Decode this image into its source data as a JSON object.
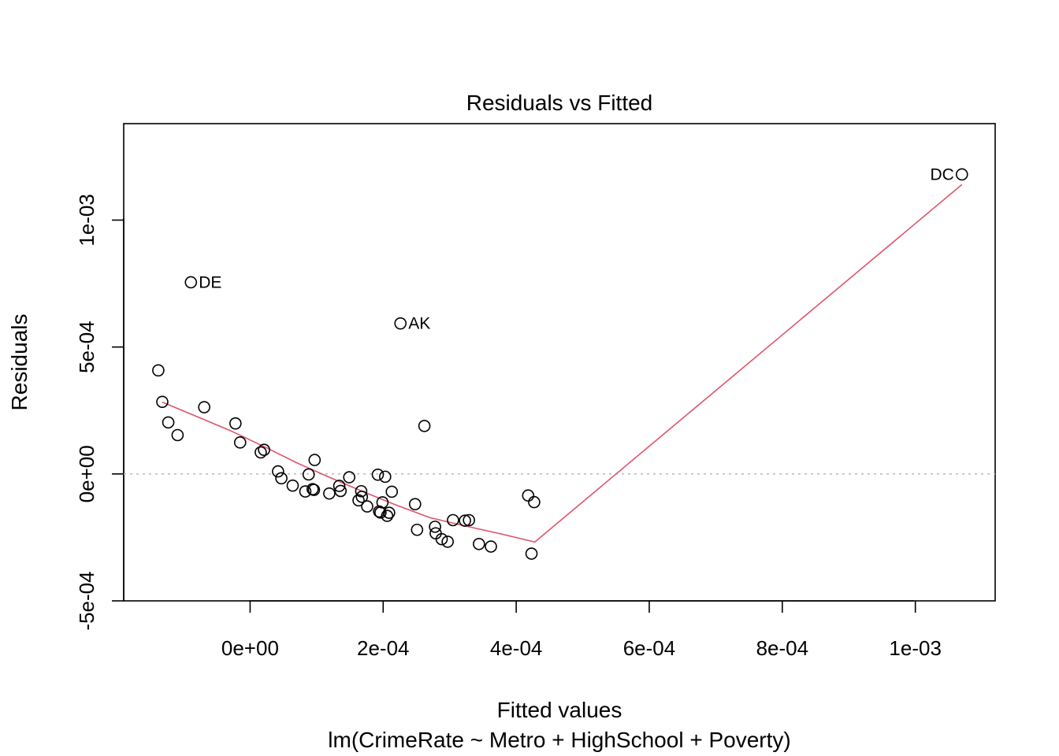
{
  "chart_data": {
    "type": "scatter",
    "title": "Residuals vs Fitted",
    "xlabel": "Fitted values",
    "ylabel": "Residuals",
    "subtitle": "lm(CrimeRate ~ Metro + HighSchool + Poverty)",
    "xlim": [
      -0.00019,
      0.00112
    ],
    "ylim": [
      -0.0005,
      0.00138
    ],
    "grid": false,
    "x_ticks": [
      {
        "value": 0,
        "label": "0e+00"
      },
      {
        "value": 0.0002,
        "label": "2e-04"
      },
      {
        "value": 0.0004,
        "label": "4e-04"
      },
      {
        "value": 0.0006,
        "label": "6e-04"
      },
      {
        "value": 0.0008,
        "label": "8e-04"
      },
      {
        "value": 0.001,
        "label": "1e-03"
      }
    ],
    "y_ticks": [
      {
        "value": -0.0005,
        "label": "-5e-04"
      },
      {
        "value": 0,
        "label": "0e+00"
      },
      {
        "value": 0.0005,
        "label": "5e-04"
      },
      {
        "value": 0.001,
        "label": "1e-03"
      }
    ],
    "reference_line": {
      "y": 0,
      "style": "dotted",
      "color": "#bebebe"
    },
    "colors": {
      "points": "#000000",
      "smooth": "#df536b"
    },
    "points": [
      {
        "x": 0.00107,
        "y": 0.00118,
        "label": "DC"
      },
      {
        "x": -8.9e-05,
        "y": 0.000755,
        "label": "DE"
      },
      {
        "x": 0.000226,
        "y": 0.000593,
        "label": "AK"
      },
      {
        "x": -0.000138,
        "y": 0.000408
      },
      {
        "x": -0.000132,
        "y": 0.000284
      },
      {
        "x": -0.000123,
        "y": 0.000203
      },
      {
        "x": -0.000109,
        "y": 0.000153
      },
      {
        "x": -6.9e-05,
        "y": 0.000263
      },
      {
        "x": -2.2e-05,
        "y": 0.000199
      },
      {
        "x": -1.5e-05,
        "y": 0.000124
      },
      {
        "x": 1.6e-05,
        "y": 8.5e-05
      },
      {
        "x": 2.1e-05,
        "y": 9.5e-05
      },
      {
        "x": 4.2e-05,
        "y": 1e-05
      },
      {
        "x": 4.7e-05,
        "y": -1.7e-05
      },
      {
        "x": 6.4e-05,
        "y": -4.6e-05
      },
      {
        "x": 8.3e-05,
        "y": -6.9e-05
      },
      {
        "x": 8.8e-05,
        "y": -2e-06
      },
      {
        "x": 9.4e-05,
        "y": -6e-05
      },
      {
        "x": 9.6e-05,
        "y": -6.3e-05
      },
      {
        "x": 9.7e-05,
        "y": 5.5e-05
      },
      {
        "x": 0.000119,
        "y": -7.7e-05
      },
      {
        "x": 0.000134,
        "y": -4.7e-05
      },
      {
        "x": 0.000136,
        "y": -6.7e-05
      },
      {
        "x": 0.000149,
        "y": -1.3e-05
      },
      {
        "x": 0.000163,
        "y": -0.000104
      },
      {
        "x": 0.000167,
        "y": -6.8e-05
      },
      {
        "x": 0.000168,
        "y": -9e-05
      },
      {
        "x": 0.000176,
        "y": -0.000128
      },
      {
        "x": 0.000192,
        "y": -3e-06
      },
      {
        "x": 0.000194,
        "y": -0.000148
      },
      {
        "x": 0.000196,
        "y": -0.000152
      },
      {
        "x": 0.000199,
        "y": -0.000112
      },
      {
        "x": 0.000203,
        "y": -1.1e-05
      },
      {
        "x": 0.000206,
        "y": -0.000165
      },
      {
        "x": 0.000209,
        "y": -0.000153
      },
      {
        "x": 0.000213,
        "y": -7e-05
      },
      {
        "x": 0.000248,
        "y": -0.000119
      },
      {
        "x": 0.000251,
        "y": -0.00022
      },
      {
        "x": 0.000262,
        "y": 0.000189
      },
      {
        "x": 0.000278,
        "y": -0.000208
      },
      {
        "x": 0.000279,
        "y": -0.000234
      },
      {
        "x": 0.000288,
        "y": -0.000257
      },
      {
        "x": 0.000297,
        "y": -0.000267
      },
      {
        "x": 0.000305,
        "y": -0.000182
      },
      {
        "x": 0.000323,
        "y": -0.000184
      },
      {
        "x": 0.000329,
        "y": -0.000182
      },
      {
        "x": 0.000344,
        "y": -0.000276
      },
      {
        "x": 0.000362,
        "y": -0.000286
      },
      {
        "x": 0.000418,
        "y": -8.5e-05
      },
      {
        "x": 0.000423,
        "y": -0.000314
      },
      {
        "x": 0.000427,
        "y": -0.000111
      }
    ],
    "smooth_line": {
      "x": [
        -0.000132,
        -8e-05,
        -3e-05,
        2e-05,
        7e-05,
        0.00012,
        0.00017,
        0.00022,
        0.00027,
        0.00032,
        0.00037,
        0.000428,
        0.00107
      ],
      "y": [
        0.000283,
        0.000226,
        0.000171,
        0.000109,
        4.4e-05,
        -1.4e-05,
        -7e-05,
        -0.000123,
        -0.000172,
        -0.000203,
        -0.000232,
        -0.000268,
        0.00114
      ]
    }
  }
}
